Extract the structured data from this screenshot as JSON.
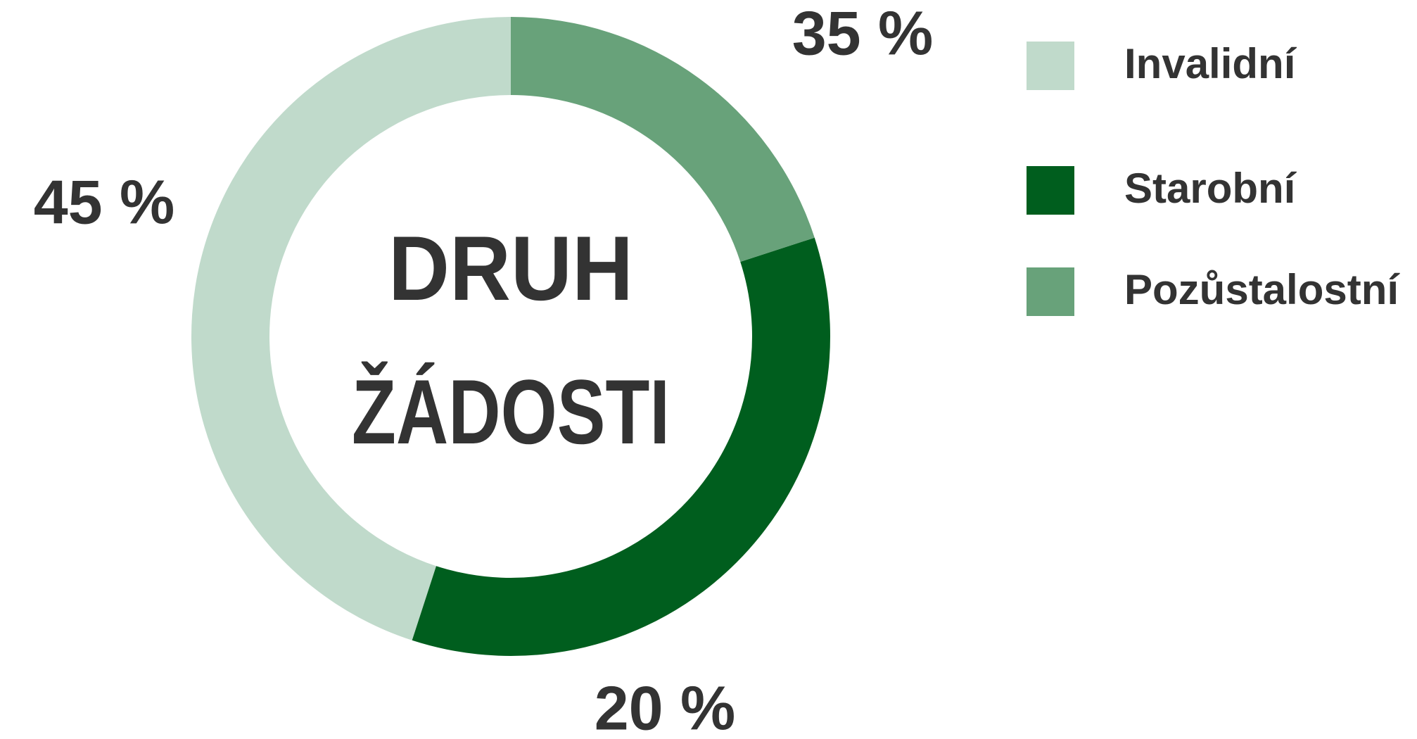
{
  "chart_data": {
    "type": "donut",
    "center_text": [
      "DRUH",
      "ŽÁDOSTI"
    ],
    "categories": [
      "Invalidní",
      "Starobní",
      "Pozůstalostní"
    ],
    "values": [
      45,
      35,
      20
    ],
    "value_labels": [
      "45 %",
      "35 %",
      "20 %"
    ],
    "colors": [
      "#c0dacb",
      "#005e1e",
      "#68a27a"
    ],
    "legend": "right"
  }
}
